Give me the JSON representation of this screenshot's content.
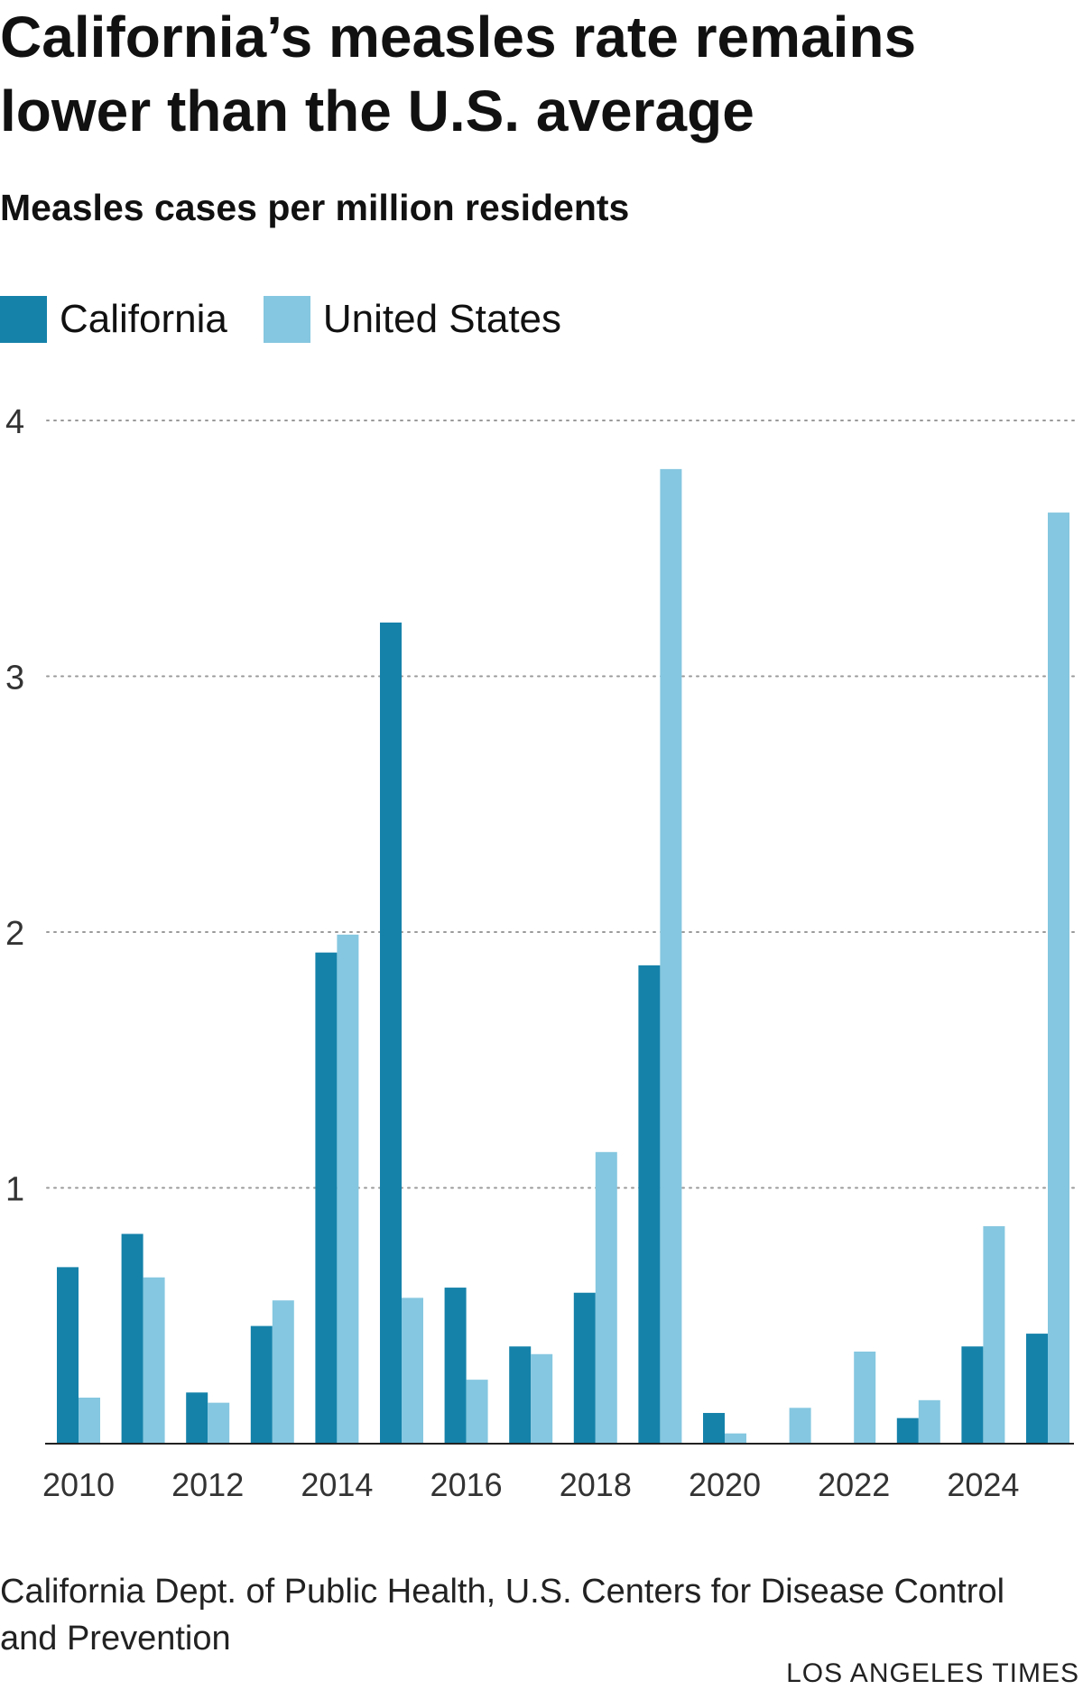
{
  "chart_data": {
    "type": "bar",
    "title": "California’s measles rate remains lower than the U.S. average",
    "subtitle": "Measles cases per million residents",
    "xlabel": "",
    "ylabel": "",
    "x": [
      2010,
      2011,
      2012,
      2013,
      2014,
      2015,
      2016,
      2017,
      2018,
      2019,
      2020,
      2021,
      2022,
      2023,
      2024,
      2025
    ],
    "x_tick_labels": [
      "2010",
      "2012",
      "2014",
      "2016",
      "2018",
      "2020",
      "2022",
      "2024"
    ],
    "y_ticks": [
      1,
      2,
      3,
      4
    ],
    "ylim": [
      0,
      4
    ],
    "grid": true,
    "grid_style": "dotted",
    "legend_position": "top-left",
    "series": [
      {
        "name": "California",
        "color": "#1582aa",
        "values": [
          0.69,
          0.82,
          0.2,
          0.46,
          1.92,
          3.21,
          0.61,
          0.38,
          0.59,
          1.87,
          0.12,
          0,
          0,
          0.1,
          0.38,
          0.43
        ]
      },
      {
        "name": "United States",
        "color": "#85c7e0",
        "values": [
          0.18,
          0.65,
          0.16,
          0.56,
          1.99,
          0.57,
          0.25,
          0.35,
          1.14,
          3.81,
          0.04,
          0.14,
          0.36,
          0.17,
          0.85,
          3.64
        ]
      }
    ]
  },
  "footer": {
    "source": "California Dept. of Public Health, U.S. Centers for Disease Control and Prevention",
    "credit": "LOS ANGELES TIMES"
  }
}
